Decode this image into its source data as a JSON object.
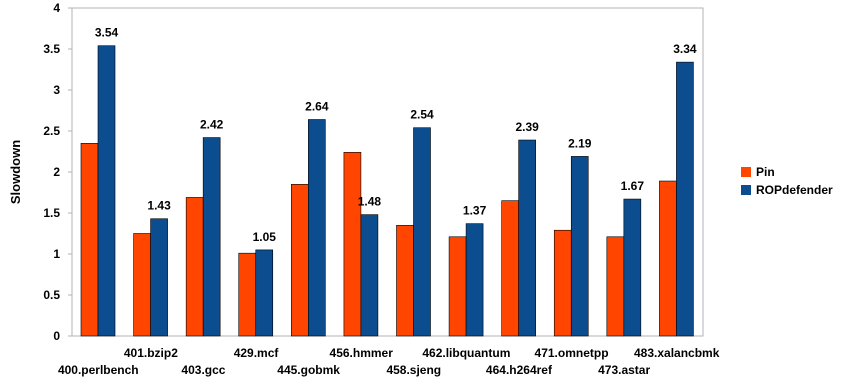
{
  "chart_data": {
    "type": "bar",
    "ylabel": "Slowdown",
    "ylim": [
      0,
      4
    ],
    "yticks": [
      "0",
      "0.5",
      "1",
      "1.5",
      "2",
      "2.5",
      "3",
      "3.5",
      "4"
    ],
    "grid": false,
    "legend_position": "right",
    "categories": [
      "400.perlbench",
      "401.bzip2",
      "403.gcc",
      "429.mcf",
      "445.gobmk",
      "456.hmmer",
      "458.sjeng",
      "462.libquantum",
      "464.h264ref",
      "471.omnetpp",
      "473.astar",
      "483.xalancbmk"
    ],
    "series": [
      {
        "name": "Pin",
        "color": "#ff4500",
        "values": [
          2.35,
          1.25,
          1.69,
          1.01,
          1.85,
          2.24,
          1.35,
          1.21,
          1.65,
          1.29,
          1.21,
          1.89
        ]
      },
      {
        "name": "ROPdefender",
        "color": "#0c4d8f",
        "values": [
          3.54,
          1.43,
          2.42,
          1.05,
          2.64,
          1.48,
          2.54,
          1.37,
          2.39,
          2.19,
          1.67,
          3.34
        ],
        "data_labels": [
          "3.54",
          "1.43",
          "2.42",
          "1.05",
          "2.64",
          "1.48",
          "2.54",
          "1.37",
          "2.39",
          "2.19",
          "1.67",
          "3.34"
        ]
      }
    ]
  }
}
